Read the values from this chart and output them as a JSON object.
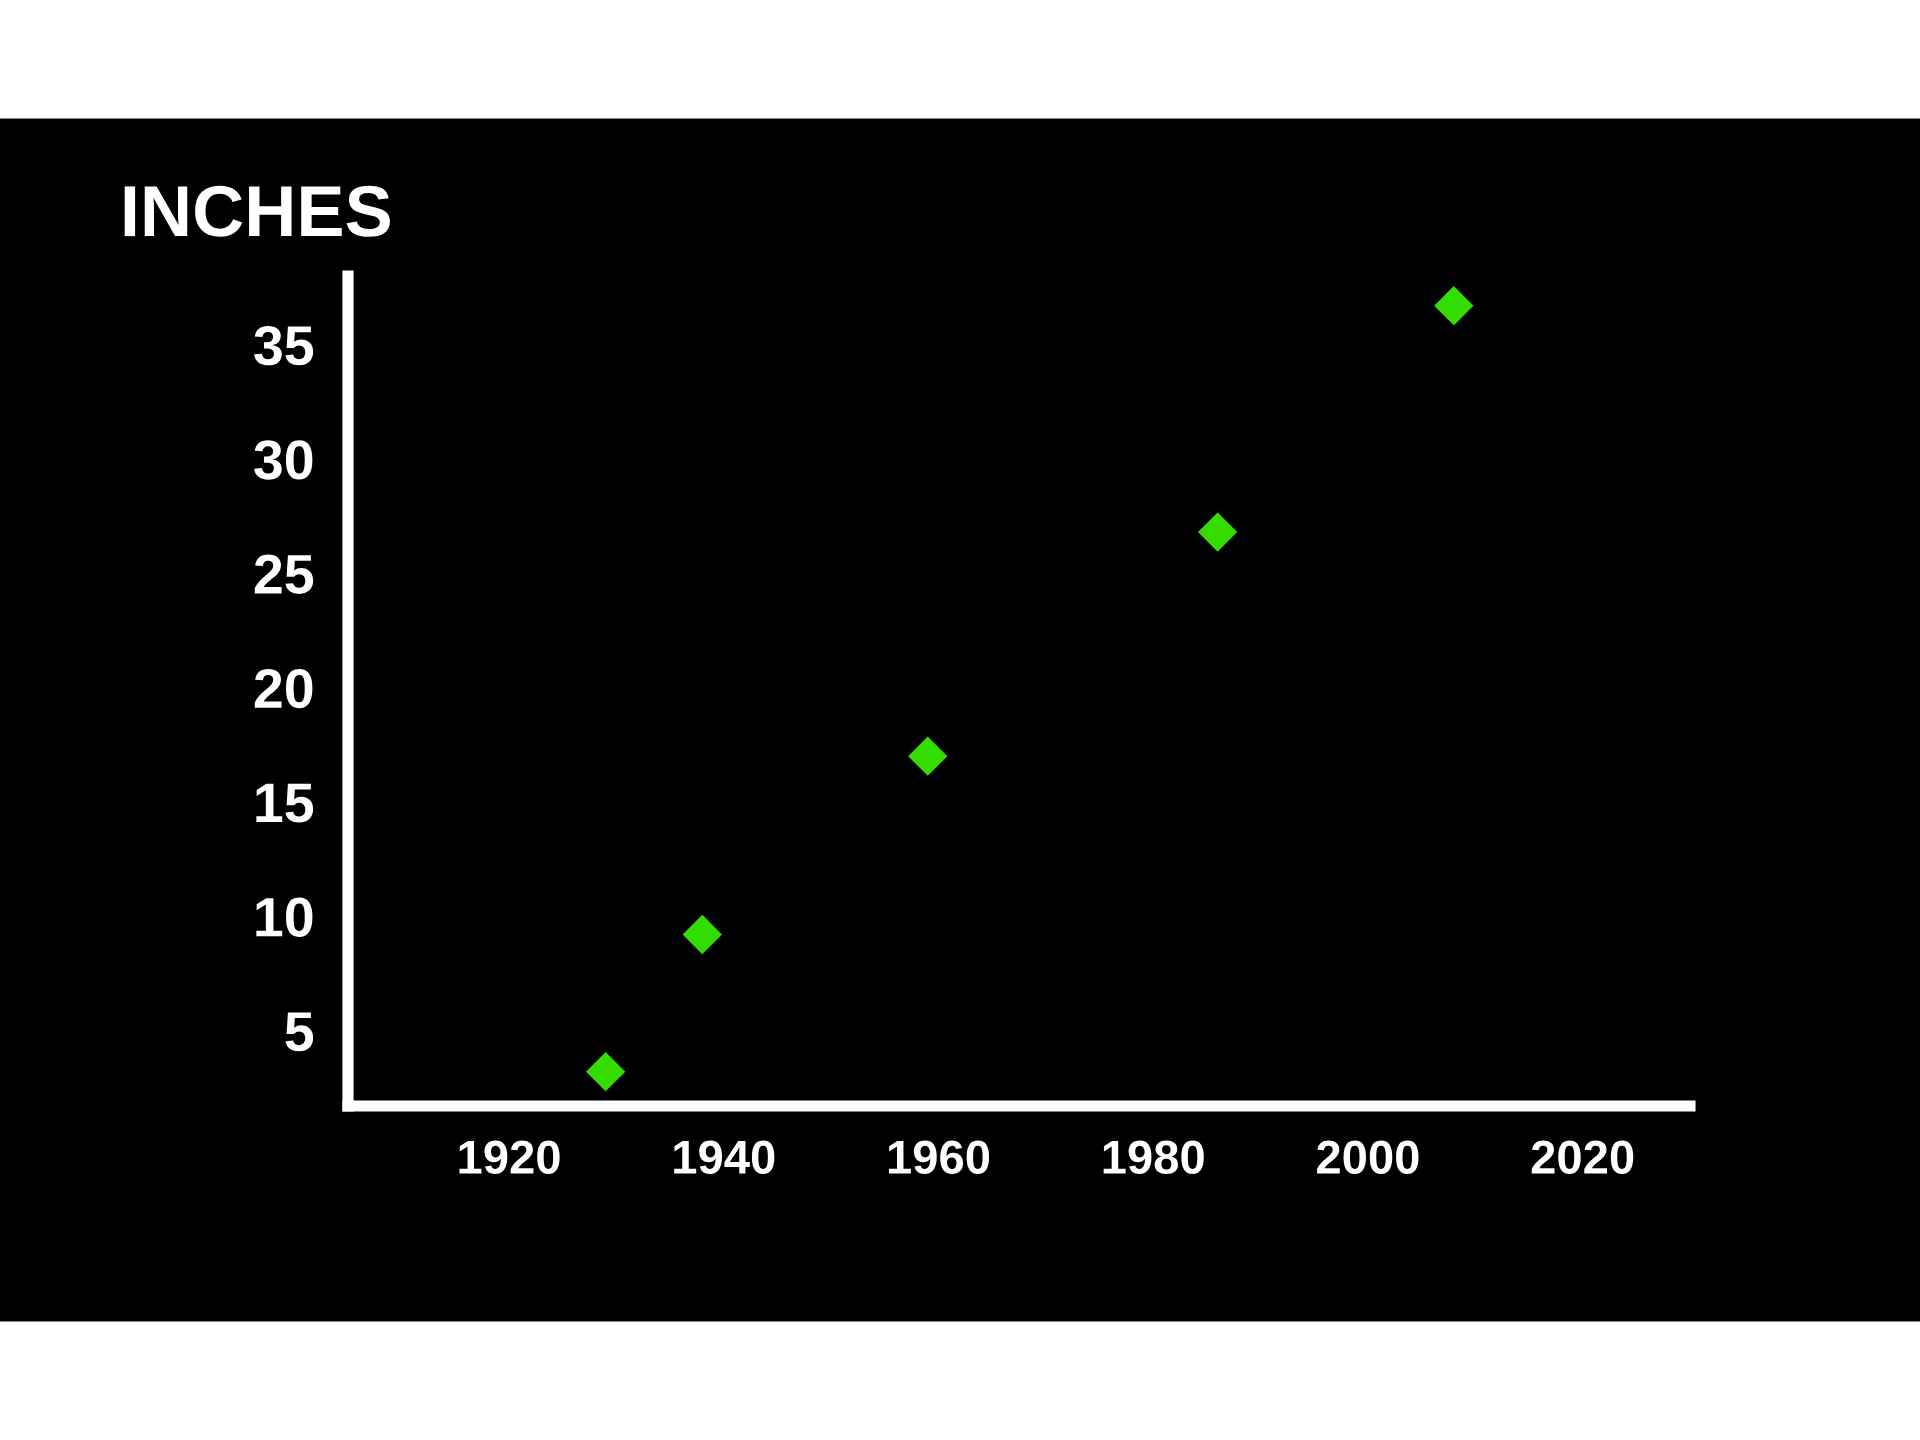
{
  "chart_data": {
    "type": "scatter",
    "ylabel": "INCHES",
    "x": [
      1929,
      1938,
      1959,
      1986,
      2008
    ],
    "series": [
      {
        "color": "#33dd00",
        "values": [
          3.2,
          9.2,
          17.0,
          26.8,
          36.7
        ]
      }
    ],
    "xlim": [
      1905,
      2030
    ],
    "ylim": [
      1.7,
      38
    ],
    "xticks": [
      1920,
      1940,
      1960,
      1980,
      2000,
      2020
    ],
    "yticks": [
      5,
      10,
      15,
      20,
      25,
      30,
      35
    ],
    "marker": "diamond",
    "grid": false,
    "legend": false
  }
}
